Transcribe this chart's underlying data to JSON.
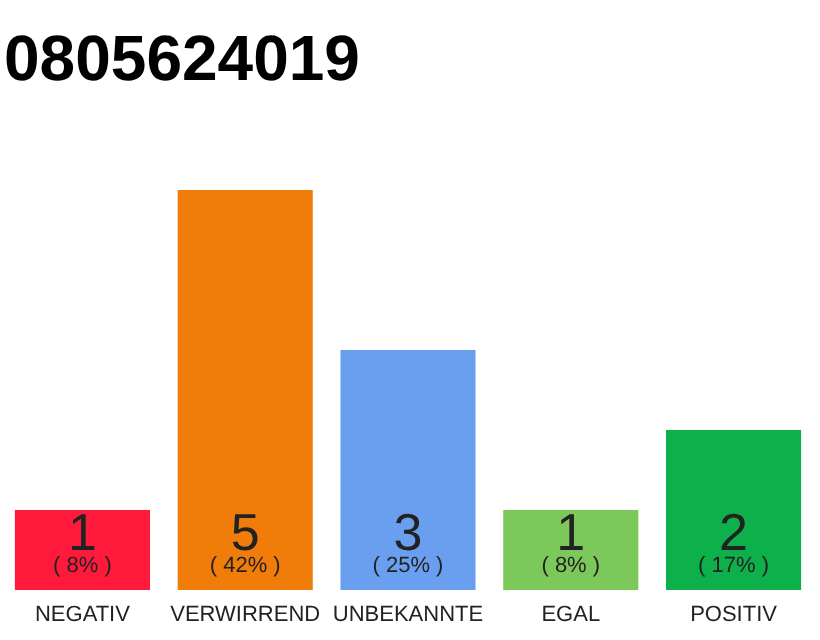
{
  "chart_data": {
    "type": "bar",
    "title": "0805624019",
    "categories": [
      "NEGATIV",
      "VERWIRREND",
      "UNBEKANNTE",
      "EGAL",
      "POSITIV"
    ],
    "values": [
      1,
      5,
      3,
      1,
      2
    ],
    "colors": [
      "#ff1a3c",
      "#f07c0a",
      "#6a9ff0",
      "#7dc85a",
      "#0db04a"
    ],
    "data_labels": true,
    "annotations": [
      "( 8% )",
      "( 42% )",
      "( 25% )",
      "( 8% )",
      "( 17% )"
    ],
    "grid": false
  }
}
